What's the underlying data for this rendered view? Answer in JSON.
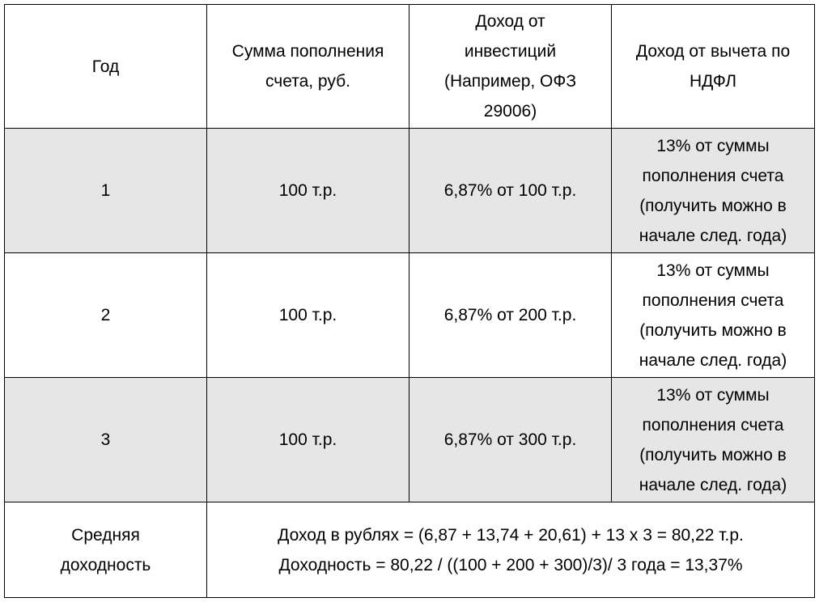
{
  "table": {
    "header": [
      [
        "Год"
      ],
      [
        "Сумма пополнения",
        "счета, руб."
      ],
      [
        "Доход от",
        "инвестиций",
        "(Например, ОФЗ",
        "29006)"
      ],
      [
        "Доход от вычета по",
        "НДФЛ"
      ]
    ],
    "rows": [
      [
        [
          "1"
        ],
        [
          "100 т.р."
        ],
        [
          "6,87% от 100 т.р."
        ],
        [
          "13% от суммы",
          "пополнения счета",
          "(получить можно в",
          "начале след. года)"
        ]
      ],
      [
        [
          "2"
        ],
        [
          "100 т.р."
        ],
        [
          "6,87% от 200 т.р."
        ],
        [
          "13% от суммы",
          "пополнения счета",
          "(получить можно в",
          "начале след. года)"
        ]
      ],
      [
        [
          "3"
        ],
        [
          "100 т.р."
        ],
        [
          "6,87% от 300 т.р."
        ],
        [
          "13% от суммы",
          "пополнения счета",
          "(получить можно в",
          "начале след. года)"
        ]
      ]
    ],
    "footer": {
      "label": [
        "Средняя",
        "доходность"
      ],
      "text": [
        "Доход в рублях = (6,87 + 13,74 + 20,61) + 13 х 3 = 80,22 т.р.",
        "Доходность = 80,22 / ((100 + 200 + 300)/3)/ 3 года = 13,37%"
      ]
    }
  }
}
